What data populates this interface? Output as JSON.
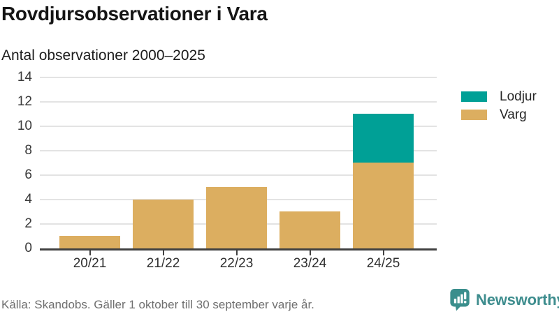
{
  "header": {
    "title": "Rovdjursobservationer i Vara",
    "subtitle": "Antal observationer 2000–2025"
  },
  "chart_data": {
    "type": "bar",
    "stacked": true,
    "title": "Rovdjursobservationer i Vara",
    "subtitle": "Antal observationer 2000–2025",
    "categories": [
      "20/21",
      "21/22",
      "22/23",
      "23/24",
      "24/25"
    ],
    "series": [
      {
        "name": "Lodjur",
        "color": "#00A096",
        "values": [
          0,
          0,
          0,
          0,
          4
        ]
      },
      {
        "name": "Varg",
        "color": "#DCAE60",
        "values": [
          1,
          4,
          5,
          3,
          7
        ]
      }
    ],
    "stack_bottom_to_top": [
      "Varg",
      "Lodjur"
    ],
    "totals": [
      1,
      4,
      5,
      3,
      11
    ],
    "ylim": [
      0,
      14
    ],
    "yticks": [
      0,
      2,
      4,
      6,
      8,
      10,
      12,
      14
    ],
    "grid": true,
    "legend_position": "right",
    "legend_order": [
      "Lodjur",
      "Varg"
    ]
  },
  "footer": {
    "source": "Källa: Skandobs. Gäller 1 oktober till 30 september varje år.",
    "brand": "Newsworthy"
  },
  "colors": {
    "lodjur": "#00A096",
    "varg": "#DCAE60",
    "brand_teal": "#3E8D8E",
    "icon_teal": "#3A8E8C",
    "gridline": "#E3E3E3",
    "axis": "#404040",
    "title_text": "#151515",
    "muted_text": "#6F6F6F"
  }
}
